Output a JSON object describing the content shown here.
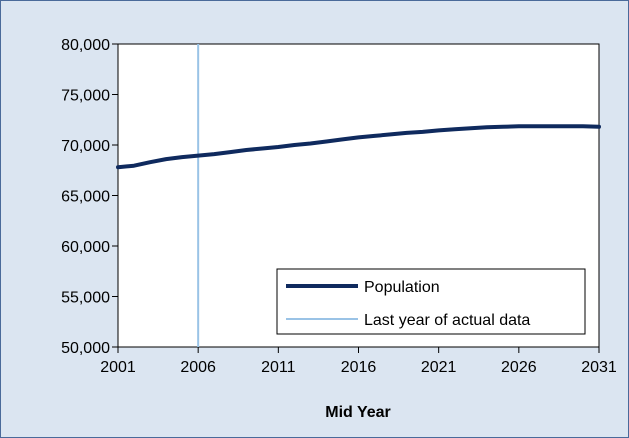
{
  "chart_data": {
    "type": "line",
    "title": "",
    "xlabel": "Mid Year",
    "ylabel": "",
    "xlim": [
      2001,
      2031
    ],
    "ylim": [
      50000,
      80000
    ],
    "x_ticks": [
      2001,
      2006,
      2011,
      2016,
      2021,
      2026,
      2031
    ],
    "x_tick_labels": [
      "2001",
      "2006",
      "2011",
      "2016",
      "2021",
      "2026",
      "2031"
    ],
    "y_ticks": [
      50000,
      55000,
      60000,
      65000,
      70000,
      75000,
      80000
    ],
    "y_tick_labels": [
      "50,000",
      "55,000",
      "60,000",
      "65,000",
      "70,000",
      "75,000",
      "80,000"
    ],
    "grid": false,
    "legend_position": "bottom-right",
    "series": [
      {
        "name": "Population",
        "color": "#0f2a5e",
        "x": [
          2001,
          2002,
          2003,
          2004,
          2005,
          2006,
          2007,
          2008,
          2009,
          2010,
          2011,
          2012,
          2013,
          2014,
          2015,
          2016,
          2017,
          2018,
          2019,
          2020,
          2021,
          2022,
          2023,
          2024,
          2025,
          2026,
          2027,
          2028,
          2029,
          2030,
          2031
        ],
        "values": [
          67800,
          67950,
          68300,
          68600,
          68800,
          68950,
          69100,
          69300,
          69500,
          69650,
          69800,
          70000,
          70150,
          70350,
          70550,
          70750,
          70900,
          71050,
          71200,
          71300,
          71450,
          71550,
          71650,
          71750,
          71800,
          71850,
          71850,
          71850,
          71850,
          71850,
          71800
        ]
      }
    ],
    "reference_line": {
      "name": "Last year of actual data",
      "x": 2006,
      "color": "#9ac3e6"
    }
  }
}
